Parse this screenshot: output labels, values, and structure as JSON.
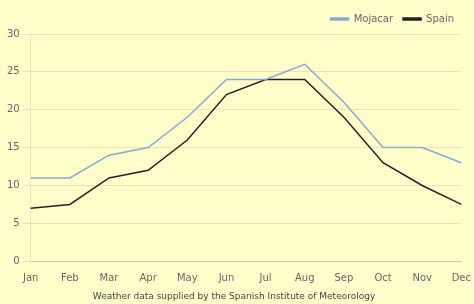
{
  "chart_data": {
    "type": "line",
    "subtitle": "Weather data supplied by the Spanish Institute of Meteorology",
    "categories": [
      "Jan",
      "Feb",
      "Mar",
      "Apr",
      "May",
      "Jun",
      "Jul",
      "Aug",
      "Sep",
      "Oct",
      "Nov",
      "Dec"
    ],
    "series": [
      {
        "name": "Mojacar",
        "color": "#88aacc",
        "values": [
          11,
          11,
          14,
          15,
          19,
          24,
          24,
          26,
          21,
          15,
          15,
          13
        ]
      },
      {
        "name": "Spain",
        "color": "#222222",
        "values": [
          7,
          7.5,
          11,
          12,
          16,
          22,
          24,
          24,
          19,
          13,
          10,
          7.5
        ]
      }
    ],
    "ylim": [
      0,
      30
    ],
    "yticks": [
      0,
      5,
      10,
      15,
      20,
      25,
      30
    ],
    "grid": "y",
    "legend": "upper right"
  }
}
